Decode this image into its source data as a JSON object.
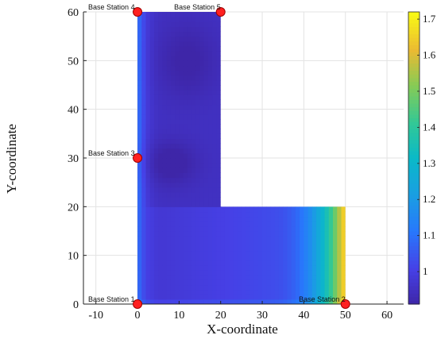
{
  "chart_data": {
    "type": "heatmap",
    "title": "",
    "xlabel": "X-coordinate",
    "ylabel": "Y-coordinate",
    "xlim": [
      -13,
      64
    ],
    "ylim": [
      0,
      60
    ],
    "xticks": [
      -10,
      0,
      10,
      20,
      30,
      40,
      50,
      60
    ],
    "yticks": [
      0,
      10,
      20,
      30,
      40,
      50,
      60
    ],
    "grid": true,
    "region": {
      "shape": "L",
      "polygon": [
        [
          0,
          0
        ],
        [
          50,
          0
        ],
        [
          50,
          20
        ],
        [
          20,
          20
        ],
        [
          20,
          60
        ],
        [
          0,
          60
        ]
      ]
    },
    "colorbar": {
      "range": [
        0.91,
        1.72
      ],
      "ticks": [
        "1",
        "1.1",
        "1.2",
        "1.3",
        "1.4",
        "1.5",
        "1.6",
        "1.7"
      ],
      "tick_values": [
        1,
        1.1,
        1.2,
        1.3,
        1.4,
        1.5,
        1.6,
        1.7
      ],
      "colormap": "parula"
    },
    "stations": [
      {
        "label": "Base Station 1",
        "x": 0,
        "y": 0
      },
      {
        "label": "Base Station 2",
        "x": 50,
        "y": 0
      },
      {
        "label": "Base Station 3",
        "x": 0,
        "y": 30
      },
      {
        "label": "Base Station 4",
        "x": 0,
        "y": 60
      },
      {
        "label": "Base Station 5",
        "x": 20,
        "y": 60
      }
    ]
  },
  "colors": {
    "station_marker": "#ff2020",
    "station_outline": "#a00000",
    "grid": "#e3e3e3",
    "axis": "#222222"
  }
}
